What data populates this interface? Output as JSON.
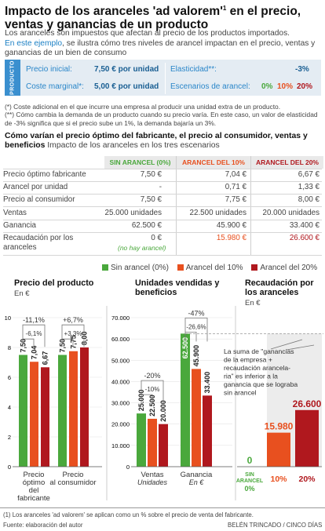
{
  "header": {
    "title_main": "Impacto de los aranceles 'ad valorem'",
    "title_sup": "1",
    "title_rest": " en el precio, ventas y ganancias de un producto",
    "intro_1": "Los aranceles son impuestos que afectan al precio de los productos importados.",
    "intro_hl": "En este ejemplo",
    "intro_2": ", se ilustra cómo tres niveles de arancel impactan en el precio, ventas y ganancias de un bien de consumo"
  },
  "product": {
    "tag": "PRODUCTO",
    "initial_price_label": "Precio inicial:",
    "initial_price_value": "7,50 € por unidad",
    "marginal_cost_label": "Coste marginal*:",
    "marginal_cost_value": "5,00 € por unidad",
    "elasticity_label": "Elasticidad**:",
    "elasticity_value": "-3%",
    "scenarios_label": "Escenarios de arancel:",
    "scenarios": [
      "0%",
      "10%",
      "20%"
    ]
  },
  "notes": [
    "(*) Coste adicional en el que incurre una empresa al producir una unidad extra de un producto.",
    "(**) Cómo cambia la demanda de un producto cuando su precio varía. En este caso, un valor de elasticidad de -3% significa que si el precio sube un 1%, la demanda bajaría un 3%."
  ],
  "table_section": {
    "title": "Cómo varían el precio óptimo del fabricante, el precio al consumidor, ventas y beneficios",
    "subtitle": "Impacto de los aranceles en los tres escenarios",
    "columns": [
      "SIN ARANCEL (0%)",
      "ARANCEL DEL 10%",
      "ARANCEL DEL 20%"
    ],
    "rows": [
      {
        "label": "Precio óptimo fabricante",
        "values": [
          "7,50 €",
          "7,04 €",
          "6,67 €"
        ]
      },
      {
        "label": "Arancel por unidad",
        "values": [
          "-",
          "0,71 €",
          "1,33 €"
        ]
      },
      {
        "label": "Precio al consumidor",
        "values": [
          "7,50 €",
          "7,75 €",
          "8,00 €"
        ]
      },
      {
        "label": "Ventas",
        "values": [
          "25.000 unidades",
          "22.500 unidades",
          "20.000 unidades"
        ]
      },
      {
        "label": "Ganancia",
        "values": [
          "62.500 €",
          "45.900 €",
          "33.400 €"
        ]
      },
      {
        "label": "Recaudación por los aranceles",
        "values": [
          "0 €",
          "15.980 €",
          "26.600 €"
        ]
      }
    ],
    "no_tariff_note": "(no hay arancel)"
  },
  "legend": {
    "items": [
      {
        "label": "Sin arancel (0%)",
        "color": "#4aa83c"
      },
      {
        "label": "Arancel del 10%",
        "color": "#e8501f"
      },
      {
        "label": "Arancel del  20%",
        "color": "#b0181e"
      }
    ]
  },
  "colors": {
    "green": "#4aa83c",
    "orange": "#e8501f",
    "red": "#b0181e",
    "accent_blue": "#2a86c9",
    "header_bg": "#e9e9e9"
  },
  "chart_data": [
    {
      "type": "bar",
      "title": "Precio del producto",
      "unit": "En €",
      "ylim": [
        0,
        10
      ],
      "yticks": [
        "0",
        "2",
        "4",
        "6",
        "8",
        "10"
      ],
      "categories": [
        "Precio óptimo del fabricante",
        "Precio al consumidor"
      ],
      "series": [
        {
          "name": "Sin arancel (0%)",
          "values": [
            7.5,
            7.5
          ],
          "labels": [
            "7,50",
            "7,50"
          ]
        },
        {
          "name": "Arancel del 10%",
          "values": [
            7.04,
            7.75
          ],
          "labels": [
            "7,04",
            "7,75"
          ]
        },
        {
          "name": "Arancel del  20%",
          "values": [
            6.67,
            8.0
          ],
          "labels": [
            "6,67",
            "8,00"
          ]
        }
      ],
      "annotations": [
        {
          "outer": "-11,1%",
          "inner": "-6,1%"
        },
        {
          "outer": "+6,7%",
          "inner": "+3,3%"
        }
      ]
    },
    {
      "type": "bar",
      "title": "Unidades vendidas y beneficios",
      "ylim": [
        0,
        70000
      ],
      "yticks": [
        "0",
        "10.000",
        "20.000",
        "30.000",
        "40.000",
        "50.000",
        "60.000",
        "70.000"
      ],
      "categories": [
        "Ventas",
        "Ganancia"
      ],
      "category_subs": [
        "Unidades",
        "En €"
      ],
      "series": [
        {
          "name": "Sin arancel (0%)",
          "values": [
            25000,
            62500
          ],
          "labels": [
            "25.000",
            "62.500"
          ]
        },
        {
          "name": "Arancel del 10%",
          "values": [
            22500,
            45900
          ],
          "labels": [
            "22.500",
            "45.900"
          ]
        },
        {
          "name": "Arancel del  20%",
          "values": [
            20000,
            33400
          ],
          "labels": [
            "20.000",
            "33.400"
          ]
        }
      ],
      "annotations": [
        {
          "outer": "-20%",
          "inner": "-10%"
        },
        {
          "outer": "-47%",
          "inner": "-26,6%"
        }
      ]
    },
    {
      "type": "bar",
      "title": "Recaudación por los aranceles",
      "unit": "En €",
      "ylim": [
        0,
        70000
      ],
      "categories": [
        "SIN ARANCEL 0%",
        "10%",
        "20%"
      ],
      "values": [
        0,
        15980,
        26600
      ],
      "labels": [
        "0",
        "15.980",
        "26.600"
      ],
      "note": "La suma de \"ganancias de la empresa + recaudación arancelaria\" es inferior a la ganancia que se lograba sin arancel"
    }
  ],
  "footer": {
    "note": "(1) Los aranceles 'ad valorem' se aplican como un % sobre el precio de venta del fabricante.",
    "source": "Fuente: elaboración del autor",
    "credit": "BELÉN TRINCADO / CINCO DÍAS"
  }
}
